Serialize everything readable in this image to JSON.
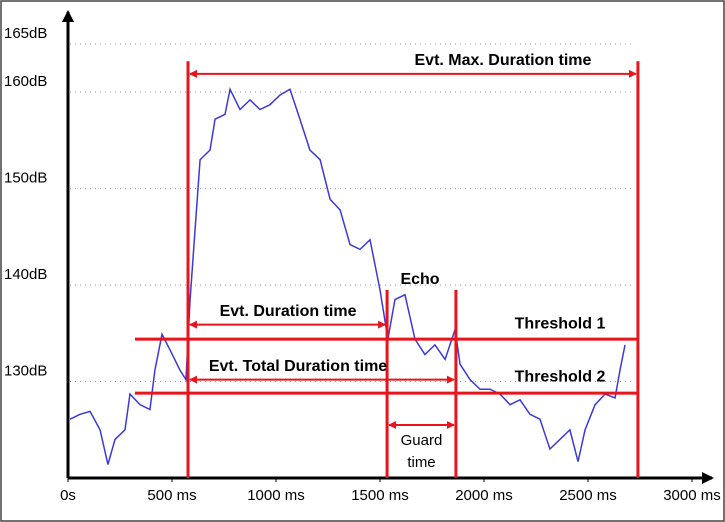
{
  "chart_data": {
    "type": "line",
    "xticks": [
      {
        "value": 0,
        "label": "0s"
      },
      {
        "value": 500,
        "label": "500 ms"
      },
      {
        "value": 1000,
        "label": "1000 ms"
      },
      {
        "value": 1500,
        "label": "1500 ms"
      },
      {
        "value": 2000,
        "label": "2000 ms"
      },
      {
        "value": 2500,
        "label": "2500 ms"
      },
      {
        "value": 3000,
        "label": "3000 ms"
      }
    ],
    "yticks": [
      {
        "value": 130,
        "label": "130dB"
      },
      {
        "value": 140,
        "label": "140dB"
      },
      {
        "value": 150,
        "label": "150dB"
      },
      {
        "value": 160,
        "label": "160dB"
      },
      {
        "value": 165,
        "label": "165dB"
      }
    ],
    "xlim": [
      0,
      3000
    ],
    "ylim": [
      120,
      168
    ],
    "grid": true,
    "series": [
      {
        "color": "#3a3ad8",
        "x": [
          10,
          58,
          106,
          154,
          192,
          226,
          274,
          298,
          346,
          394,
          418,
          452,
          490,
          538,
          567,
          587,
          611,
          635,
          659,
          683,
          707,
          755,
          779,
          827,
          875,
          923,
          971,
          1019,
          1067,
          1115,
          1163,
          1212,
          1260,
          1308,
          1356,
          1404,
          1452,
          1500,
          1538,
          1572,
          1620,
          1668,
          1716,
          1764,
          1813,
          1861,
          1885,
          1933,
          1981,
          2029,
          2077,
          2125,
          2173,
          2221,
          2269,
          2317,
          2365,
          2413,
          2452,
          2486,
          2534,
          2582,
          2630,
          2654,
          2678
        ],
        "values": [
          126.1,
          126.6,
          126.9,
          125.0,
          121.4,
          124.0,
          125.0,
          128.7,
          127.6,
          127.1,
          131.2,
          134.9,
          133.3,
          131.2,
          130.2,
          138.5,
          145.8,
          153.0,
          153.5,
          154.0,
          157.2,
          157.7,
          160.3,
          158.2,
          159.2,
          158.2,
          158.7,
          159.7,
          160.3,
          157.2,
          154.0,
          153.0,
          148.9,
          147.8,
          144.2,
          143.7,
          144.7,
          139.5,
          134.4,
          138.5,
          139.0,
          134.4,
          132.8,
          133.8,
          132.3,
          135.4,
          131.8,
          130.2,
          129.2,
          129.2,
          128.7,
          127.6,
          128.1,
          126.6,
          126.1,
          123.0,
          124.0,
          125.0,
          121.7,
          125.0,
          127.6,
          128.7,
          128.3,
          131.2,
          133.8
        ]
      }
    ],
    "annotation_color": "#e8141c",
    "markers": [
      {
        "x": 577,
        "top": 163.2
      },
      {
        "x": 1534,
        "top": 139.5
      },
      {
        "x": 1865,
        "top": 139.5
      },
      {
        "x": 2740,
        "top": 163.2
      }
    ],
    "thresholds": [
      {
        "name": "Threshold 1",
        "value": 134.4
      },
      {
        "name": "Threshold 2",
        "value": 128.8
      }
    ],
    "spans": [
      {
        "label": "Evt. Max. Duration time",
        "from": 577,
        "to": 2740,
        "y": 161.9
      },
      {
        "label": "Evt. Duration time",
        "from": 577,
        "to": 1534,
        "y": 135.9
      },
      {
        "label": "Evt. Total Duration time",
        "from": 577,
        "to": 1865,
        "y": 130.2
      },
      {
        "label_lines": [
          "Guard",
          "time"
        ],
        "from": 1534,
        "to": 1865,
        "y": 125.5
      }
    ],
    "echo_label": "Echo"
  }
}
